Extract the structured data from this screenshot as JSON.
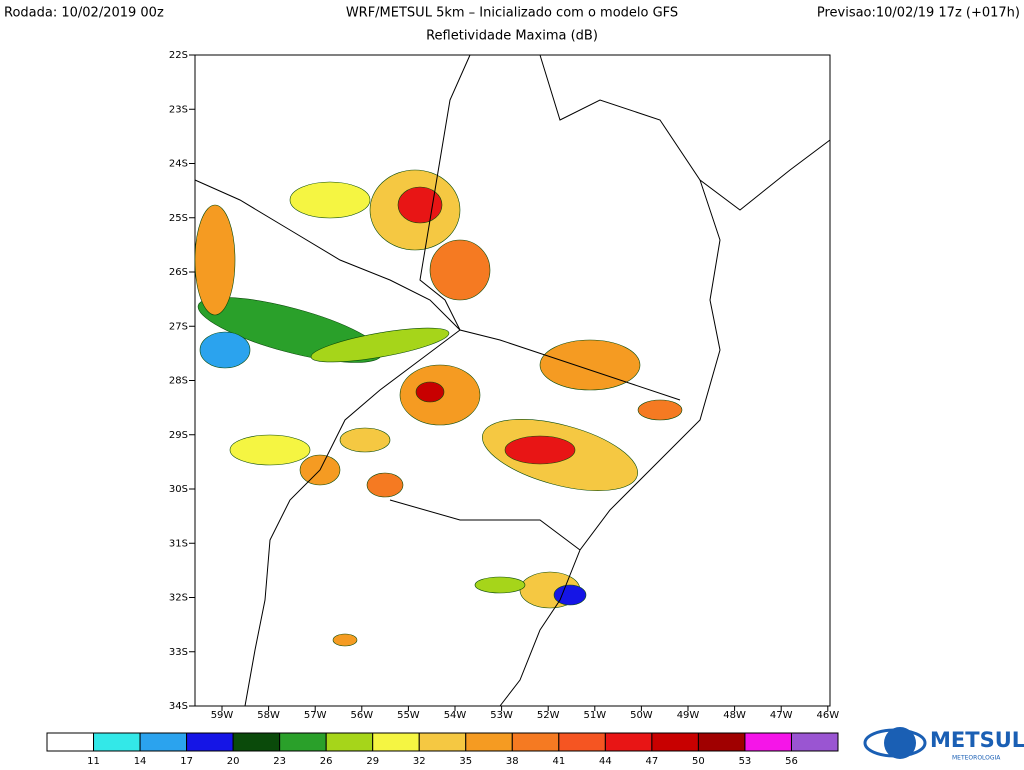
{
  "header": {
    "run": "Rodada: 10/02/2019 00z",
    "title": "WRF/METSUL 5km – Inicializado com o modelo GFS",
    "forecast": "Previsao:10/02/19 17z (+017h)",
    "subtitle": "Refletividade Maxima (dB)"
  },
  "map": {
    "lat_labels": [
      "22S",
      "23S",
      "24S",
      "25S",
      "26S",
      "27S",
      "28S",
      "29S",
      "30S",
      "31S",
      "32S",
      "33S",
      "34S"
    ],
    "lon_labels": [
      "59W",
      "58W",
      "57W",
      "56W",
      "55W",
      "54W",
      "53W",
      "52W",
      "51W",
      "50W",
      "49W",
      "48W",
      "47W",
      "46W"
    ]
  },
  "colorbar": {
    "colors": [
      "#ffffff",
      "#33e8e8",
      "#2ba3ee",
      "#1515e6",
      "#0a4a0a",
      "#2aa02a",
      "#a6d51a",
      "#f5f542",
      "#f5c842",
      "#f59b22",
      "#f57a22",
      "#f55522",
      "#e81515",
      "#c80000",
      "#a00000",
      "#f515e8",
      "#9a55d2"
    ],
    "labels": [
      11,
      14,
      17,
      20,
      23,
      26,
      29,
      32,
      35,
      38,
      41,
      44,
      47,
      50,
      53,
      56
    ]
  },
  "logo": {
    "name": "METSUL",
    "tagline": "METEOROLOGIA"
  }
}
